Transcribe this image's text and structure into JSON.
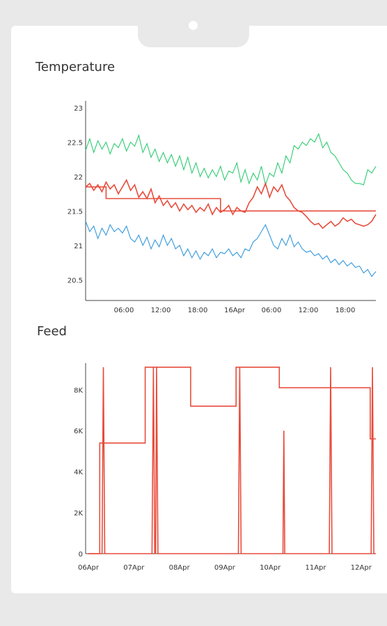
{
  "charts": {
    "temperature_title": "Temperature",
    "feed_title": "Feed"
  },
  "chart_data": [
    {
      "type": "line",
      "title": "Temperature",
      "ylim": [
        20.2,
        23.1
      ],
      "y_ticks": [
        "23",
        "22.5",
        "22",
        "21.5",
        "21",
        "20.5"
      ],
      "x_ticks": [
        "06:00",
        "12:00",
        "18:00",
        "16Apr",
        "06:00",
        "12:00",
        "18:00"
      ],
      "grid": false,
      "series": [
        {
          "color": "#2ecc71",
          "values": [
            22.38,
            22.55,
            22.35,
            22.52,
            22.4,
            22.5,
            22.33,
            22.48,
            22.42,
            22.55,
            22.37,
            22.5,
            22.44,
            22.6,
            22.35,
            22.48,
            22.28,
            22.4,
            22.22,
            22.35,
            22.2,
            22.32,
            22.15,
            22.3,
            22.1,
            22.28,
            22.05,
            22.2,
            22.0,
            22.12,
            21.98,
            22.1,
            22.0,
            22.15,
            21.95,
            22.08,
            22.05,
            22.2,
            21.92,
            22.1,
            21.9,
            22.05,
            21.95,
            22.15,
            21.88,
            22.05,
            22.0,
            22.2,
            22.05,
            22.3,
            22.2,
            22.45,
            22.4,
            22.5,
            22.45,
            22.55,
            22.5,
            22.62,
            22.42,
            22.5,
            22.35,
            22.3,
            22.2,
            22.1,
            22.05,
            21.95,
            21.9,
            21.9,
            21.88,
            22.1,
            22.05,
            22.15
          ]
        },
        {
          "color": "#e74c3c",
          "values": [
            21.85,
            21.9,
            21.8,
            21.88,
            21.78,
            21.92,
            21.82,
            21.88,
            21.75,
            21.85,
            21.95,
            21.8,
            21.88,
            21.7,
            21.78,
            21.68,
            21.82,
            21.62,
            21.72,
            21.58,
            21.65,
            21.55,
            21.62,
            21.5,
            21.6,
            21.52,
            21.58,
            21.48,
            21.55,
            21.5,
            21.6,
            21.45,
            21.55,
            21.48,
            21.52,
            21.58,
            21.45,
            21.55,
            21.5,
            21.48,
            21.62,
            21.7,
            21.85,
            21.75,
            21.9,
            21.7,
            21.85,
            21.78,
            21.88,
            21.72,
            21.65,
            21.55,
            21.5,
            21.48,
            21.42,
            21.35,
            21.3,
            21.32,
            21.25,
            21.3,
            21.35,
            21.28,
            21.32,
            21.4,
            21.35,
            21.38,
            21.32,
            21.3,
            21.28,
            21.3,
            21.35,
            21.45
          ]
        },
        {
          "color": "#3498db",
          "values": [
            21.35,
            21.2,
            21.28,
            21.1,
            21.25,
            21.15,
            21.3,
            21.2,
            21.25,
            21.18,
            21.28,
            21.1,
            21.05,
            21.15,
            21.0,
            21.12,
            20.95,
            21.08,
            20.98,
            21.15,
            21.0,
            21.1,
            20.95,
            21.0,
            20.85,
            20.95,
            20.82,
            20.92,
            20.8,
            20.9,
            20.85,
            20.95,
            20.82,
            20.9,
            20.88,
            20.95,
            20.85,
            20.9,
            20.82,
            20.95,
            20.92,
            21.05,
            21.1,
            21.2,
            21.3,
            21.15,
            21.0,
            20.95,
            21.1,
            21.0,
            21.15,
            20.98,
            21.05,
            20.95,
            20.9,
            20.92,
            20.85,
            20.88,
            20.8,
            20.85,
            20.75,
            20.8,
            20.72,
            20.78,
            20.7,
            20.75,
            20.68,
            20.7,
            20.6,
            20.65,
            20.55,
            20.62
          ]
        },
        {
          "color": "#e74c3c",
          "step": true,
          "values": [
            21.85,
            21.85,
            21.85,
            21.85,
            21.85,
            21.68,
            21.68,
            21.68,
            21.68,
            21.68,
            21.68,
            21.68,
            21.68,
            21.68,
            21.68,
            21.68,
            21.68,
            21.68,
            21.68,
            21.68,
            21.68,
            21.68,
            21.68,
            21.68,
            21.68,
            21.68,
            21.68,
            21.68,
            21.68,
            21.68,
            21.68,
            21.68,
            21.68,
            21.5,
            21.5,
            21.5,
            21.5,
            21.5,
            21.5,
            21.5,
            21.5,
            21.5,
            21.5,
            21.5,
            21.5,
            21.5,
            21.5,
            21.5,
            21.5,
            21.5,
            21.5,
            21.5,
            21.5,
            21.5,
            21.5,
            21.5,
            21.5,
            21.5,
            21.5,
            21.5,
            21.5,
            21.5,
            21.5,
            21.5,
            21.5,
            21.5,
            21.5,
            21.5,
            21.5,
            21.5,
            21.5,
            21.5
          ]
        }
      ]
    },
    {
      "type": "line",
      "title": "Feed",
      "ylim": [
        0,
        9300
      ],
      "y_ticks": [
        "0",
        "2K",
        "4K",
        "6K",
        "8K"
      ],
      "y_tick_values": [
        0,
        2000,
        4000,
        6000,
        8000
      ],
      "x_ticks": [
        "06Apr",
        "07Apr",
        "08Apr",
        "09Apr",
        "10Apr",
        "11Apr",
        "12Apr"
      ],
      "grid": false,
      "series": [
        {
          "color": "#e74c3c",
          "step_points": [
            [
              0.0,
              0
            ],
            [
              0.25,
              0
            ],
            [
              0.25,
              5400
            ],
            [
              1.25,
              5400
            ],
            [
              1.25,
              9100
            ],
            [
              2.25,
              9100
            ],
            [
              2.25,
              7200
            ],
            [
              3.25,
              7200
            ],
            [
              3.25,
              9100
            ],
            [
              4.2,
              9100
            ],
            [
              4.2,
              8100
            ],
            [
              5.2,
              8100
            ],
            [
              5.2,
              8100
            ],
            [
              6.2,
              8100
            ],
            [
              6.2,
              5600
            ],
            [
              6.45,
              5600
            ]
          ],
          "spike_points": [
            [
              0.0,
              0
            ],
            [
              0.3,
              0
            ],
            [
              0.33,
              9100
            ],
            [
              0.36,
              0
            ],
            [
              1.4,
              0
            ],
            [
              1.43,
              9100
            ],
            [
              1.46,
              0
            ],
            [
              1.48,
              0
            ],
            [
              1.5,
              9100
            ],
            [
              1.53,
              0
            ],
            [
              3.3,
              0
            ],
            [
              3.33,
              9100
            ],
            [
              3.36,
              0
            ],
            [
              4.28,
              0
            ],
            [
              4.3,
              6000
            ],
            [
              4.32,
              0
            ],
            [
              5.3,
              0
            ],
            [
              5.33,
              9100
            ],
            [
              5.36,
              0
            ],
            [
              6.22,
              0
            ],
            [
              6.25,
              9100
            ],
            [
              6.28,
              0
            ],
            [
              6.45,
              0
            ]
          ]
        }
      ]
    }
  ]
}
